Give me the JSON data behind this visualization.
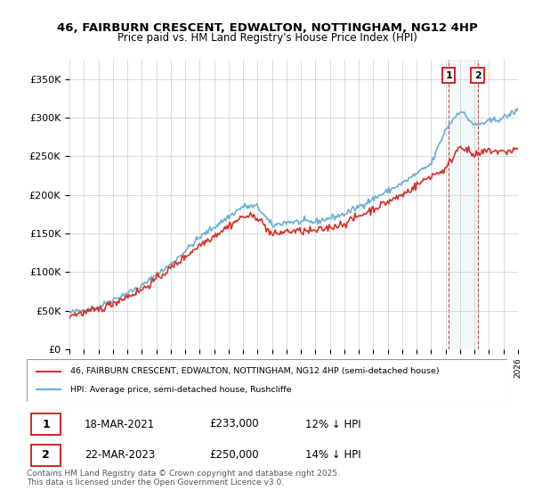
{
  "title_line1": "46, FAIRBURN CRESCENT, EDWALTON, NOTTINGHAM, NG12 4HP",
  "title_line2": "Price paid vs. HM Land Registry's House Price Index (HPI)",
  "ylabel": "",
  "xlabel": "",
  "ylim": [
    0,
    375000
  ],
  "yticks": [
    0,
    50000,
    100000,
    150000,
    200000,
    250000,
    300000,
    350000
  ],
  "ytick_labels": [
    "£0",
    "£50K",
    "£100K",
    "£150K",
    "£200K",
    "£250K",
    "£300K",
    "£350K"
  ],
  "x_start_year": 1995,
  "x_end_year": 2026,
  "hpi_color": "#6baed6",
  "price_color": "#d73027",
  "marker1_date_idx": 26.2,
  "marker2_date_idx": 28.2,
  "marker1_label": "1",
  "marker2_label": "2",
  "marker1_price": 233000,
  "marker2_price": 250000,
  "sale1_date": "18-MAR-2021",
  "sale1_amount": "£233,000",
  "sale1_hpi": "12% ↓ HPI",
  "sale2_date": "22-MAR-2023",
  "sale2_amount": "£250,000",
  "sale2_hpi": "14% ↓ HPI",
  "legend_label1": "46, FAIRBURN CRESCENT, EDWALTON, NOTTINGHAM, NG12 4HP (semi-detached house)",
  "legend_label2": "HPI: Average price, semi-detached house, Rushcliffe",
  "footer": "Contains HM Land Registry data © Crown copyright and database right 2025.\nThis data is licensed under the Open Government Licence v3.0.",
  "background_color": "#ffffff",
  "grid_color": "#cccccc"
}
